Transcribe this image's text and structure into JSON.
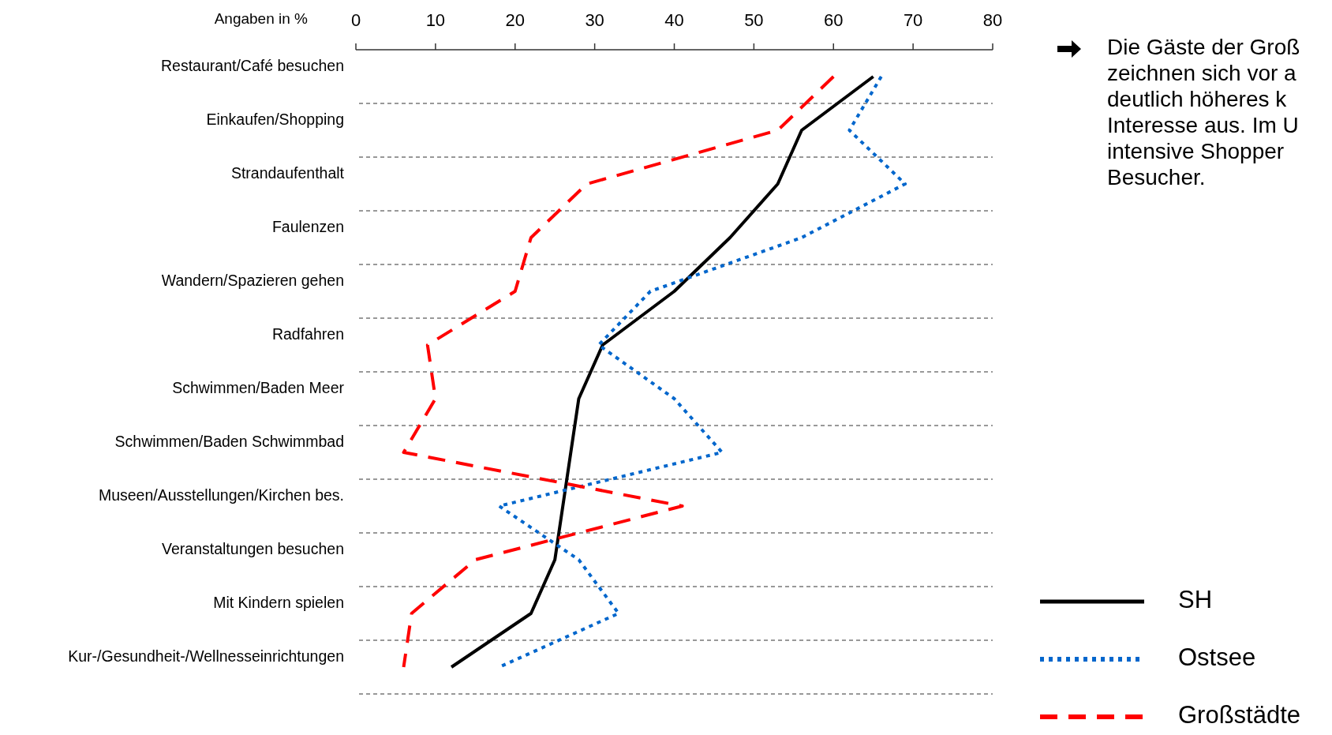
{
  "chart_data": {
    "type": "line",
    "orientation": "horizontal",
    "xlabel": "Angaben in %",
    "categories": [
      "Restaurant/Café besuchen",
      "Einkaufen/Shopping",
      "Strandaufenthalt",
      "Faulenzen",
      "Wandern/Spazieren gehen",
      "Radfahren",
      "Schwimmen/Baden Meer",
      "Schwimmen/Baden Schwimmbad",
      "Museen/Ausstellungen/Kirchen bes.",
      "Veranstaltungen besuchen",
      "Mit Kindern spielen",
      "Kur-/Gesundheit-/Wellnesseinrichtungen"
    ],
    "series": [
      {
        "name": "SH",
        "color": "#000000",
        "line_style": "solid",
        "values": [
          65,
          56,
          53,
          47,
          40,
          31,
          28,
          27,
          26,
          25,
          22,
          12
        ]
      },
      {
        "name": "Ostsee",
        "color": "#0066cc",
        "line_style": "dotted",
        "values": [
          66,
          62,
          69,
          56,
          37,
          30.5,
          40,
          46,
          18,
          28,
          33,
          18
        ]
      },
      {
        "name": "Großstädte",
        "color": "#ff0000",
        "line_style": "dashed",
        "values": [
          60,
          53,
          29,
          22,
          20,
          9,
          10,
          6,
          41,
          15,
          7,
          6
        ]
      }
    ],
    "xlim": [
      0,
      80
    ],
    "xticks": [
      0,
      10,
      20,
      30,
      40,
      50,
      60,
      70,
      80
    ],
    "grid": "y",
    "legend": "bottom right",
    "annotations": [
      "Die Gäste der Groß\nzeichnen sich vor a\ndeutlich höheres k\nInteresse aus. Im U\nintensive Shopper\nBesucher."
    ]
  }
}
